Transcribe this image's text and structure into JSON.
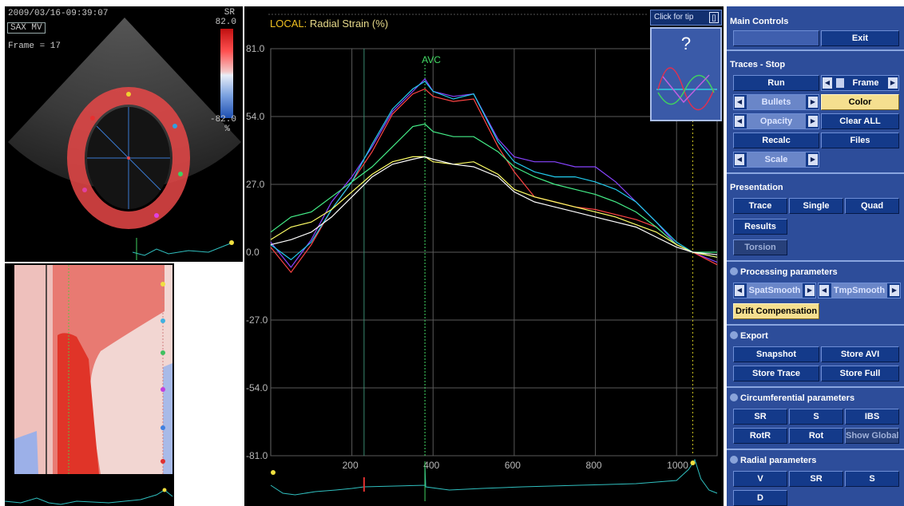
{
  "echo": {
    "timestamp": "2009/03/16-09:39:07",
    "view": "SAX MV",
    "frame": "Frame = 17",
    "sr_label": "SR",
    "scale_top": "82.0",
    "scale_bottom": "-82.0",
    "scale_unit": "%"
  },
  "graph": {
    "title_prefix": "LOCAL:",
    "title": "Radial Strain (%)",
    "marker_label": "AVC",
    "tip_label": "Click for tip",
    "tip_symbol": "?",
    "pin_symbol": "[]"
  },
  "chart_data": {
    "type": "line",
    "title": "LOCAL: Radial Strain (%)",
    "ylabel": "",
    "xlabel": "",
    "x_ticks": [
      "200",
      "400",
      "600",
      "800",
      "1000"
    ],
    "y_ticks": [
      "81.0",
      "54.0",
      "27.0",
      "0.0",
      "-27.0",
      "-54.0",
      "-81.0"
    ],
    "xlim": [
      0,
      1100
    ],
    "ylim": [
      -81,
      81
    ],
    "annotations": [
      {
        "label": "AVC",
        "x": 380
      }
    ],
    "series": [
      {
        "color": "#8844ff",
        "points": [
          [
            0,
            4
          ],
          [
            50,
            -6
          ],
          [
            100,
            5
          ],
          [
            150,
            20
          ],
          [
            200,
            30
          ],
          [
            250,
            42
          ],
          [
            300,
            56
          ],
          [
            350,
            64
          ],
          [
            380,
            69
          ],
          [
            400,
            64
          ],
          [
            450,
            62
          ],
          [
            500,
            63
          ],
          [
            560,
            45
          ],
          [
            600,
            38
          ],
          [
            650,
            36
          ],
          [
            700,
            36
          ],
          [
            750,
            34
          ],
          [
            800,
            34
          ],
          [
            850,
            28
          ],
          [
            900,
            20
          ],
          [
            950,
            12
          ],
          [
            1000,
            3
          ],
          [
            1040,
            0
          ],
          [
            1100,
            -4
          ]
        ]
      },
      {
        "color": "#ff4444",
        "points": [
          [
            0,
            2
          ],
          [
            50,
            -8
          ],
          [
            100,
            3
          ],
          [
            150,
            17
          ],
          [
            200,
            28
          ],
          [
            250,
            40
          ],
          [
            300,
            55
          ],
          [
            350,
            63
          ],
          [
            380,
            65
          ],
          [
            400,
            62
          ],
          [
            450,
            60
          ],
          [
            500,
            61
          ],
          [
            560,
            42
          ],
          [
            600,
            32
          ],
          [
            650,
            22
          ],
          [
            700,
            20
          ],
          [
            750,
            18
          ],
          [
            800,
            17
          ],
          [
            850,
            15
          ],
          [
            900,
            13
          ],
          [
            950,
            10
          ],
          [
            1000,
            3
          ],
          [
            1040,
            0
          ],
          [
            1100,
            -5
          ]
        ]
      },
      {
        "color": "#22ccee",
        "points": [
          [
            0,
            3
          ],
          [
            50,
            -3
          ],
          [
            100,
            4
          ],
          [
            150,
            17
          ],
          [
            200,
            28
          ],
          [
            250,
            43
          ],
          [
            300,
            57
          ],
          [
            350,
            65
          ],
          [
            380,
            68
          ],
          [
            400,
            64
          ],
          [
            450,
            61
          ],
          [
            500,
            63
          ],
          [
            560,
            44
          ],
          [
            600,
            36
          ],
          [
            650,
            32
          ],
          [
            700,
            30
          ],
          [
            750,
            30
          ],
          [
            800,
            28
          ],
          [
            850,
            25
          ],
          [
            900,
            20
          ],
          [
            950,
            12
          ],
          [
            1000,
            4
          ],
          [
            1040,
            0
          ],
          [
            1100,
            -2
          ]
        ]
      },
      {
        "color": "#44ee88",
        "points": [
          [
            0,
            8
          ],
          [
            50,
            14
          ],
          [
            100,
            16
          ],
          [
            150,
            22
          ],
          [
            200,
            28
          ],
          [
            250,
            34
          ],
          [
            300,
            42
          ],
          [
            350,
            50
          ],
          [
            380,
            51
          ],
          [
            400,
            48
          ],
          [
            450,
            46
          ],
          [
            500,
            46
          ],
          [
            560,
            40
          ],
          [
            600,
            34
          ],
          [
            650,
            30
          ],
          [
            700,
            27
          ],
          [
            750,
            25
          ],
          [
            800,
            23
          ],
          [
            850,
            20
          ],
          [
            900,
            16
          ],
          [
            950,
            10
          ],
          [
            1000,
            3
          ],
          [
            1040,
            0
          ],
          [
            1100,
            0
          ]
        ]
      },
      {
        "color": "#ffff66",
        "points": [
          [
            0,
            5
          ],
          [
            50,
            10
          ],
          [
            100,
            12
          ],
          [
            150,
            17
          ],
          [
            200,
            24
          ],
          [
            250,
            31
          ],
          [
            300,
            36
          ],
          [
            350,
            38
          ],
          [
            380,
            38
          ],
          [
            400,
            36
          ],
          [
            450,
            35
          ],
          [
            500,
            36
          ],
          [
            560,
            31
          ],
          [
            600,
            25
          ],
          [
            650,
            22
          ],
          [
            700,
            20
          ],
          [
            750,
            18
          ],
          [
            800,
            16
          ],
          [
            850,
            14
          ],
          [
            900,
            11
          ],
          [
            950,
            8
          ],
          [
            1000,
            3
          ],
          [
            1040,
            0
          ],
          [
            1100,
            -2
          ]
        ]
      },
      {
        "color": "#ffffff",
        "points": [
          [
            0,
            3
          ],
          [
            50,
            5
          ],
          [
            100,
            8
          ],
          [
            150,
            14
          ],
          [
            200,
            22
          ],
          [
            250,
            30
          ],
          [
            300,
            35
          ],
          [
            350,
            37
          ],
          [
            380,
            38
          ],
          [
            400,
            37
          ],
          [
            450,
            35
          ],
          [
            500,
            34
          ],
          [
            560,
            30
          ],
          [
            600,
            24
          ],
          [
            650,
            20
          ],
          [
            700,
            18
          ],
          [
            750,
            16
          ],
          [
            800,
            14
          ],
          [
            850,
            12
          ],
          [
            900,
            10
          ],
          [
            950,
            6
          ],
          [
            1000,
            2
          ],
          [
            1040,
            0
          ],
          [
            1100,
            -1
          ]
        ]
      }
    ]
  },
  "controls": {
    "main_controls": "Main Controls",
    "exit": "Exit",
    "traces_stop": "Traces - Stop",
    "run": "Run",
    "frame": "Frame",
    "bullets": "Bullets",
    "color": "Color",
    "opacity": "Opacity",
    "clear_all": "Clear ALL",
    "recalc": "Recalc",
    "files": "Files",
    "scale": "Scale",
    "presentation": "Presentation",
    "trace": "Trace",
    "single": "Single",
    "quad": "Quad",
    "results": "Results",
    "torsion": "Torsion",
    "processing": "Processing parameters",
    "spat_smooth": "SpatSmooth",
    "tmp_smooth": "TmpSmooth",
    "drift": "Drift Compensation",
    "export": "Export",
    "snapshot": "Snapshot",
    "store_avi": "Store AVI",
    "store_trace": "Store Trace",
    "store_full": "Store Full",
    "circ_params": "Circumferential parameters",
    "circ_sr": "SR",
    "circ_s": "S",
    "ibs": "IBS",
    "rotr": "RotR",
    "rot": "Rot",
    "show_global": "Show Global",
    "radial_params": "Radial parameters",
    "rad_v": "V",
    "rad_sr": "SR",
    "rad_s": "S",
    "rad_d": "D"
  },
  "colors": {
    "panel": "#2d4d9a",
    "button": "#143a8a",
    "highlight": "#f5df8f",
    "avc_marker": "#44dd66"
  }
}
